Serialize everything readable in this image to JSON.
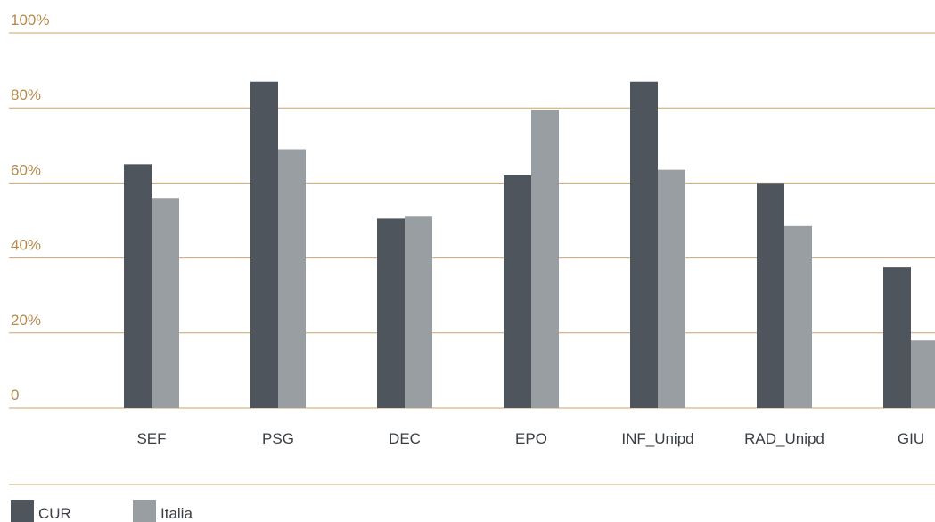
{
  "chart_data": {
    "type": "bar",
    "categories": [
      "SEF",
      "PSG",
      "DEC",
      "EPO",
      "INF_Unipd",
      "RAD_Unipd",
      "GIU"
    ],
    "series": [
      {
        "name": "CUR",
        "color": "#4e555c",
        "values": [
          65,
          87,
          50.5,
          62,
          87,
          60,
          37.5
        ]
      },
      {
        "name": "Italia",
        "color": "#999ea3",
        "values": [
          56,
          69,
          51,
          79.5,
          63.5,
          48.5,
          18
        ]
      }
    ],
    "ylim": [
      0,
      100
    ],
    "yticks": [
      {
        "value": 0,
        "label": "0"
      },
      {
        "value": 20,
        "label": "20%"
      },
      {
        "value": 40,
        "label": "40%"
      },
      {
        "value": 60,
        "label": "60%"
      },
      {
        "value": 80,
        "label": "80%"
      },
      {
        "value": 100,
        "label": "100%"
      }
    ],
    "grid": true,
    "grid_color": "#c9a46b",
    "legend_position": "bottom-left"
  }
}
